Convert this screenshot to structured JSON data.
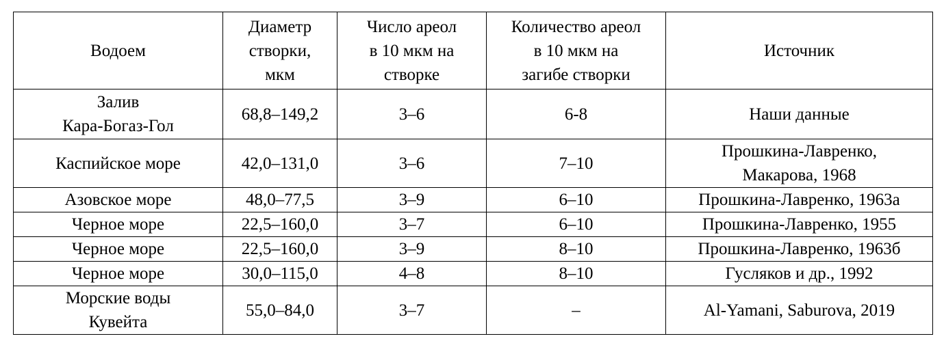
{
  "table": {
    "header": [
      [
        "Водоем"
      ],
      [
        "Диаметр",
        "створки,",
        "мкм"
      ],
      [
        "Число ареол",
        "в 10 мкм на",
        "створке"
      ],
      [
        "Количество ареол",
        "в 10 мкм на",
        "загибе створки"
      ],
      [
        "Источник"
      ]
    ],
    "rows": [
      [
        [
          "Залив",
          "Кара-Богаз-Гол"
        ],
        [
          "68,8–149,2"
        ],
        [
          "3–6"
        ],
        [
          "6-8"
        ],
        [
          "Наши данные"
        ]
      ],
      [
        [
          "Каспийское море"
        ],
        [
          "42,0–131,0"
        ],
        [
          "3–6"
        ],
        [
          "7–10"
        ],
        [
          "Прошкина-Лавренко,",
          "Макарова, 1968"
        ]
      ],
      [
        [
          "Азовское море"
        ],
        [
          "48,0–77,5"
        ],
        [
          "3–9"
        ],
        [
          "6–10"
        ],
        [
          "Прошкина-Лавренко, 1963а"
        ]
      ],
      [
        [
          "Черное море"
        ],
        [
          "22,5–160,0"
        ],
        [
          "3–7"
        ],
        [
          "6–10"
        ],
        [
          "Прошкина-Лавренко, 1955"
        ]
      ],
      [
        [
          "Черное море"
        ],
        [
          "22,5–160,0"
        ],
        [
          "3–9"
        ],
        [
          "8–10"
        ],
        [
          "Прошкина-Лавренко, 1963б"
        ]
      ],
      [
        [
          "Черное море"
        ],
        [
          "30,0–115,0"
        ],
        [
          "4–8"
        ],
        [
          "8–10"
        ],
        [
          "Гусляков и др., 1992"
        ]
      ],
      [
        [
          "Морские воды",
          "Кувейта"
        ],
        [
          "55,0–84,0"
        ],
        [
          "3–7"
        ],
        [
          "–"
        ],
        [
          "Al-Yamani, Saburova, 2019"
        ]
      ]
    ]
  }
}
